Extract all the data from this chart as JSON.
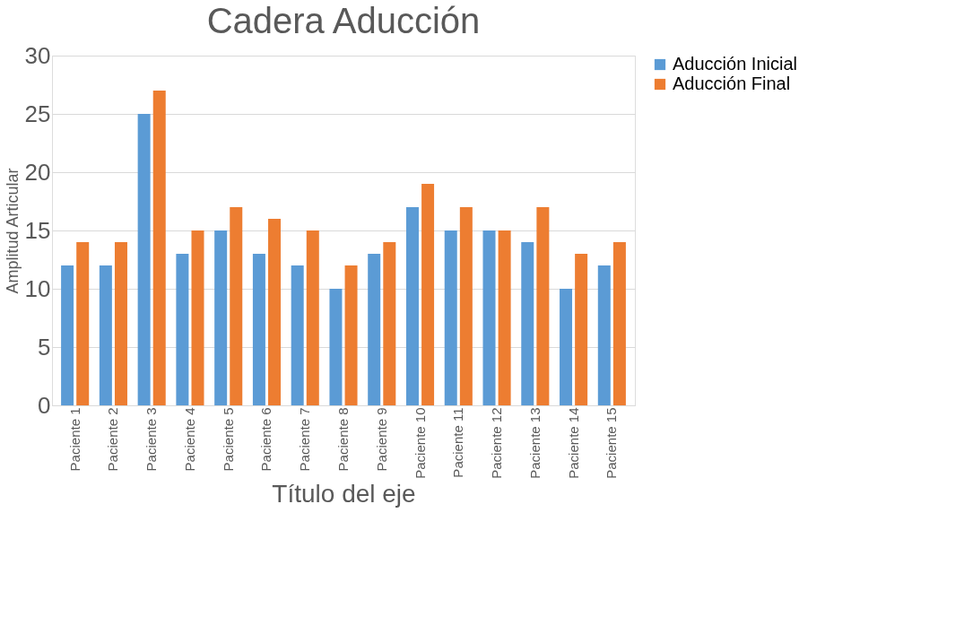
{
  "chart_data": {
    "type": "bar",
    "title": "Cadera Aducción",
    "xlabel": "Título del eje",
    "ylabel": "Amplitud Articular",
    "categories": [
      "Paciente 1",
      "Paciente 2",
      "Paciente 3",
      "Paciente 4",
      "Paciente 5",
      "Paciente 6",
      "Paciente 7",
      "Paciente 8",
      "Paciente 9",
      "Paciente 10",
      "Paciente 11",
      "Paciente 12",
      "Paciente 13",
      "Paciente 14",
      "Paciente 15"
    ],
    "series": [
      {
        "name": "Aducción Inicial",
        "color": "#5b9bd5",
        "values": [
          12,
          12,
          25,
          13,
          15,
          13,
          12,
          10,
          13,
          17,
          15,
          15,
          14,
          10,
          12
        ]
      },
      {
        "name": "Aducción Final",
        "color": "#ed7d31",
        "values": [
          14,
          14,
          27,
          15,
          17,
          16,
          15,
          12,
          14,
          19,
          17,
          15,
          17,
          13,
          14
        ]
      }
    ],
    "ylim": [
      0,
      30
    ],
    "yticks": [
      0,
      5,
      10,
      15,
      20,
      25,
      30
    ],
    "grid": "y",
    "legend": "right"
  }
}
